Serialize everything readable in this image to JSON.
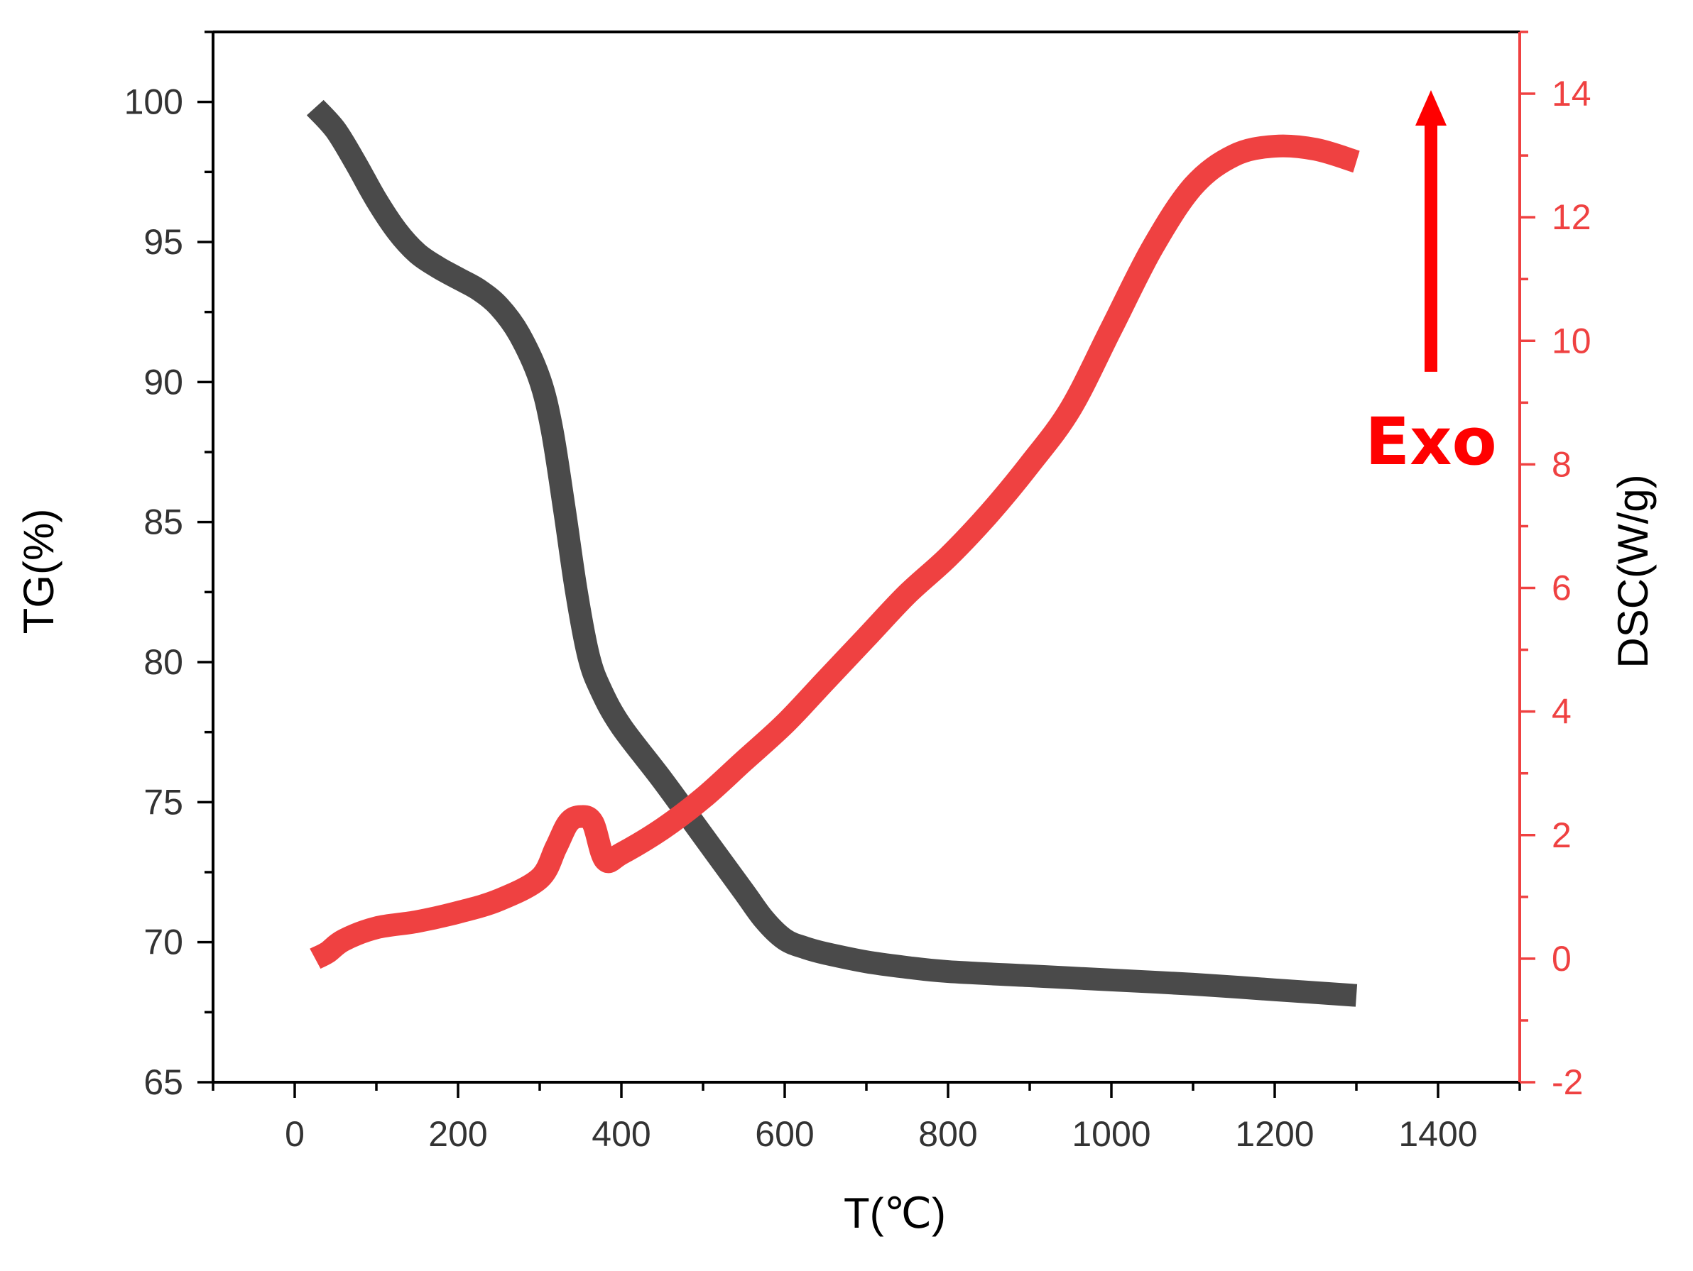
{
  "chart_data": {
    "type": "line",
    "xlabel": "T(℃)",
    "ylabel": "TG(%)",
    "y2label": "DSC(W/g)",
    "xlim": [
      -100,
      1500
    ],
    "ylim": [
      65,
      102.5
    ],
    "y2lim": [
      -2,
      15
    ],
    "x_ticks": [
      0,
      200,
      400,
      600,
      800,
      1000,
      1200,
      1400
    ],
    "x_tick_labels": [
      "0",
      "200",
      "400",
      "600",
      "800",
      "1000",
      "1200",
      "1400"
    ],
    "y_ticks": [
      65,
      70,
      75,
      80,
      85,
      90,
      95,
      100
    ],
    "y_tick_labels": [
      "65",
      "70",
      "75",
      "80",
      "85",
      "90",
      "95",
      "100"
    ],
    "y2_ticks": [
      -2,
      0,
      2,
      4,
      6,
      8,
      10,
      12,
      14
    ],
    "y2_tick_labels": [
      "-2",
      "0",
      "2",
      "4",
      "6",
      "8",
      "10",
      "12",
      "14"
    ],
    "annotation": {
      "text": "Exo",
      "arrow_x": 1400,
      "arrow_y2_from": 9.5,
      "arrow_y2_to": 14.0
    },
    "colors": {
      "tg": "#4a4a4a",
      "dsc": "#ef4141",
      "axis_right": "#ef4141",
      "annotation": "#ff0000",
      "axis_left": "#000000"
    },
    "series": [
      {
        "name": "TG",
        "axis": "left",
        "x": [
          25,
          50,
          75,
          100,
          125,
          150,
          175,
          200,
          225,
          250,
          275,
          300,
          315,
          330,
          345,
          360,
          375,
          400,
          450,
          500,
          550,
          575,
          600,
          625,
          650,
          700,
          750,
          800,
          900,
          1000,
          1100,
          1200,
          1300
        ],
        "y": [
          99.8,
          99.0,
          97.8,
          96.5,
          95.4,
          94.6,
          94.1,
          93.7,
          93.3,
          92.7,
          91.7,
          90.1,
          88.3,
          85.5,
          82.5,
          80.2,
          79.0,
          77.7,
          75.8,
          73.8,
          71.8,
          70.8,
          70.1,
          69.8,
          69.6,
          69.3,
          69.1,
          68.95,
          68.8,
          68.65,
          68.5,
          68.3,
          68.1
        ]
      },
      {
        "name": "DSC",
        "axis": "right",
        "x": [
          25,
          40,
          60,
          100,
          150,
          200,
          250,
          300,
          320,
          335,
          350,
          365,
          380,
          400,
          450,
          500,
          550,
          600,
          650,
          700,
          750,
          800,
          850,
          900,
          950,
          1000,
          1050,
          1100,
          1150,
          1200,
          1250,
          1300
        ],
        "y": [
          0.0,
          0.1,
          0.3,
          0.5,
          0.6,
          0.75,
          0.95,
          1.3,
          1.8,
          2.2,
          2.3,
          2.2,
          1.6,
          1.7,
          2.1,
          2.6,
          3.2,
          3.8,
          4.5,
          5.2,
          5.9,
          6.5,
          7.2,
          8.0,
          8.9,
          10.2,
          11.5,
          12.5,
          13.0,
          13.15,
          13.1,
          12.9
        ]
      }
    ]
  }
}
